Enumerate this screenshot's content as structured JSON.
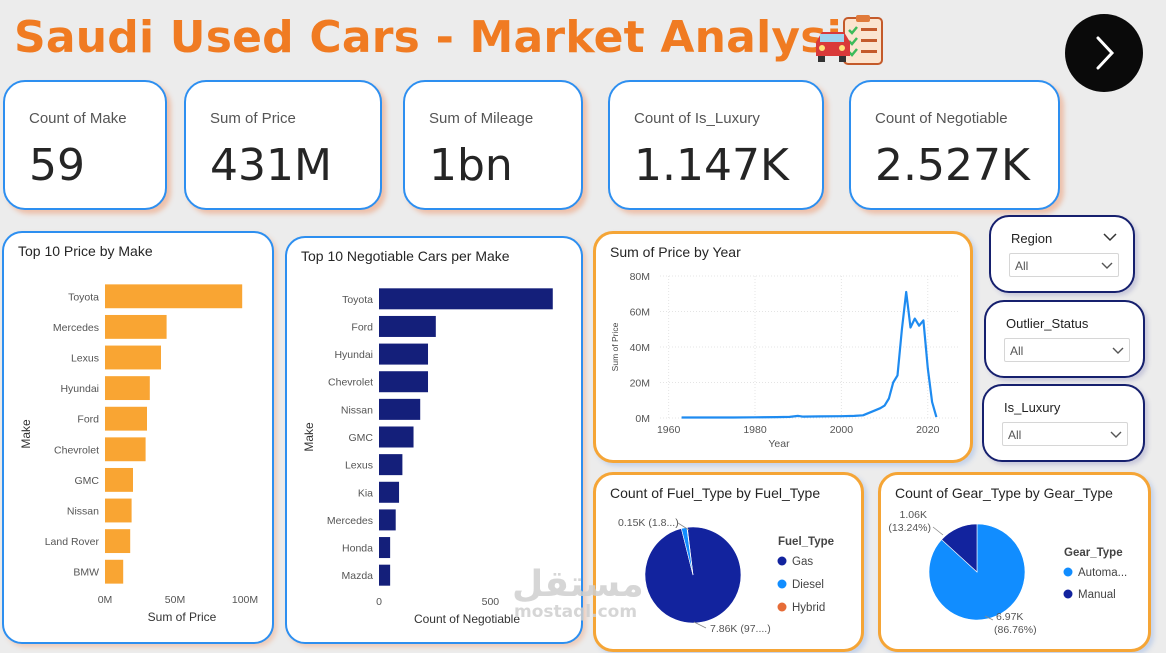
{
  "header": {
    "title": "Saudi Used Cars - Market Analysis",
    "icon": "car-checklist-icon"
  },
  "kpis": [
    {
      "label": "Count of Make",
      "value": "59"
    },
    {
      "label": "Sum of Price",
      "value": "431M"
    },
    {
      "label": "Sum of Mileage",
      "value": "1bn"
    },
    {
      "label": "Count of Is_Luxury",
      "value": "1.147K"
    },
    {
      "label": "Count of Negotiable",
      "value": "2.527K"
    }
  ],
  "slicers": [
    {
      "title": "Region",
      "value": "All"
    },
    {
      "title": "Outlier_Status",
      "value": "All"
    },
    {
      "title": "Is_Luxury",
      "value": "All"
    }
  ],
  "watermark": {
    "arabic": "مستقل",
    "latin": "mostaql.com"
  },
  "colors": {
    "accent": "#f07b22",
    "bar_orange": "#f9a533",
    "bar_navy": "#141f7a",
    "line_blue": "#1e8bf0",
    "pie_navy": "#12239e",
    "pie_blue": "#118dff",
    "pie_orange": "#e66c37"
  },
  "chart_data": [
    {
      "type": "bar",
      "title": "Top 10 Price by Make",
      "orientation": "horizontal",
      "categories": [
        "Toyota",
        "Mercedes",
        "Lexus",
        "Hyundai",
        "Ford",
        "Chevrolet",
        "GMC",
        "Nissan",
        "Land Rover",
        "BMW"
      ],
      "values": [
        98,
        44,
        40,
        32,
        30,
        29,
        20,
        19,
        18,
        13
      ],
      "unit": "M",
      "xlabel": "Sum of Price",
      "ylabel": "Make",
      "xlim": [
        0,
        110
      ],
      "ticks": [
        {
          "v": 0,
          "label": "0M"
        },
        {
          "v": 50,
          "label": "50M"
        },
        {
          "v": 100,
          "label": "100M"
        }
      ]
    },
    {
      "type": "bar",
      "title": "Top 10 Negotiable Cars per Make",
      "orientation": "horizontal",
      "categories": [
        "Toyota",
        "Ford",
        "Hyundai",
        "Chevrolet",
        "Nissan",
        "GMC",
        "Lexus",
        "Kia",
        "Mercedes",
        "Honda",
        "Mazda"
      ],
      "values": [
        780,
        255,
        220,
        220,
        185,
        155,
        105,
        90,
        75,
        50,
        50
      ],
      "xlabel": "Count of Negotiable",
      "ylabel": "Make",
      "xlim": [
        0,
        790
      ],
      "ticks": [
        {
          "v": 0,
          "label": "0"
        },
        {
          "v": 500,
          "label": "500"
        }
      ]
    },
    {
      "type": "line",
      "title": "Sum of Price by Year",
      "xlabel": "Year",
      "ylabel": "Sum of Price",
      "xlim": [
        1958,
        2027
      ],
      "ylim": [
        0,
        80
      ],
      "xticks": [
        {
          "v": 1960,
          "label": "1960"
        },
        {
          "v": 1980,
          "label": "1980"
        },
        {
          "v": 2000,
          "label": "2000"
        },
        {
          "v": 2020,
          "label": "2020"
        }
      ],
      "yticks": [
        {
          "v": 0,
          "label": "0M"
        },
        {
          "v": 20,
          "label": "20M"
        },
        {
          "v": 40,
          "label": "40M"
        },
        {
          "v": 60,
          "label": "60M"
        },
        {
          "v": 80,
          "label": "80M"
        }
      ],
      "x": [
        1963,
        1970,
        1975,
        1980,
        1985,
        1988,
        1990,
        1991,
        1995,
        2000,
        2003,
        2005,
        2007,
        2009,
        2010,
        2011,
        2012,
        2013,
        2014,
        2015,
        2016,
        2017,
        2018,
        2019,
        2020,
        2021,
        2022
      ],
      "y": [
        0.3,
        0.3,
        0.3,
        0.4,
        0.5,
        0.6,
        1.2,
        0.8,
        0.9,
        1.0,
        1.2,
        1.5,
        3.5,
        5.5,
        7.0,
        11.0,
        20.0,
        24.0,
        50.0,
        71.0,
        51.0,
        56.0,
        52.0,
        55.0,
        28.0,
        9.0,
        0.5
      ]
    },
    {
      "type": "pie",
      "title": "Count of Fuel_Type by Fuel_Type",
      "legend_title": "Fuel_Type",
      "slices": [
        {
          "label": "Gas",
          "value": 7.86,
          "display": "7.86K (97....)",
          "color": "#12239e"
        },
        {
          "label": "Diesel",
          "value": 0.15,
          "display": "0.15K (1.8...)",
          "color": "#118dff"
        },
        {
          "label": "Hybrid",
          "value": 0.01,
          "display": "",
          "color": "#e66c37"
        }
      ]
    },
    {
      "type": "pie",
      "title": "Count of Gear_Type by Gear_Type",
      "legend_title": "Gear_Type",
      "slices": [
        {
          "label": "Automa...",
          "value": 6.97,
          "display_a": "6.97K",
          "display_b": "(86.76%)",
          "color": "#118dff"
        },
        {
          "label": "Manual",
          "value": 1.06,
          "display_a": "1.06K",
          "display_b": "(13.24%)",
          "color": "#12239e"
        }
      ]
    }
  ]
}
